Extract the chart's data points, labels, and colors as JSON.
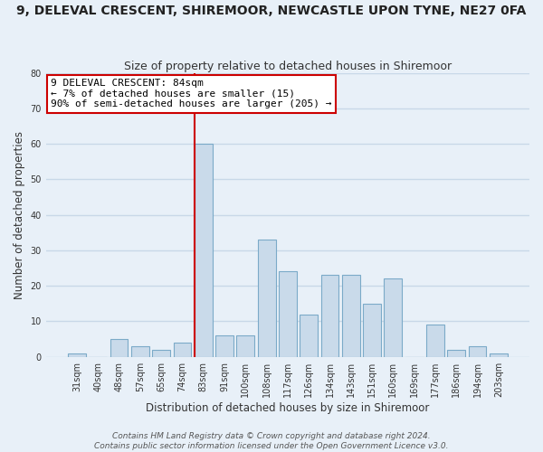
{
  "title": "9, DELEVAL CRESCENT, SHIREMOOR, NEWCASTLE UPON TYNE, NE27 0FA",
  "subtitle": "Size of property relative to detached houses in Shiremoor",
  "xlabel": "Distribution of detached houses by size in Shiremoor",
  "ylabel": "Number of detached properties",
  "categories": [
    "31sqm",
    "40sqm",
    "48sqm",
    "57sqm",
    "65sqm",
    "74sqm",
    "83sqm",
    "91sqm",
    "100sqm",
    "108sqm",
    "117sqm",
    "126sqm",
    "134sqm",
    "143sqm",
    "151sqm",
    "160sqm",
    "169sqm",
    "177sqm",
    "186sqm",
    "194sqm",
    "203sqm"
  ],
  "values": [
    1,
    0,
    5,
    3,
    2,
    4,
    60,
    6,
    6,
    33,
    24,
    12,
    23,
    23,
    15,
    22,
    0,
    9,
    2,
    3,
    1
  ],
  "bar_color": "#c9daea",
  "bar_edge_color": "#7baac8",
  "highlight_index": 6,
  "highlight_line_color": "#cc0000",
  "ylim": [
    0,
    80
  ],
  "yticks": [
    0,
    10,
    20,
    30,
    40,
    50,
    60,
    70,
    80
  ],
  "annotation_title": "9 DELEVAL CRESCENT: 84sqm",
  "annotation_line1": "← 7% of detached houses are smaller (15)",
  "annotation_line2": "90% of semi-detached houses are larger (205) →",
  "annotation_box_color": "#ffffff",
  "annotation_box_edge": "#cc0000",
  "footer1": "Contains HM Land Registry data © Crown copyright and database right 2024.",
  "footer2": "Contains public sector information licensed under the Open Government Licence v3.0.",
  "background_color": "#e8f0f8",
  "grid_color": "#c8d8e8",
  "title_fontsize": 10,
  "subtitle_fontsize": 9,
  "axis_label_fontsize": 8.5,
  "tick_fontsize": 7,
  "footer_fontsize": 6.5,
  "annotation_fontsize": 8
}
